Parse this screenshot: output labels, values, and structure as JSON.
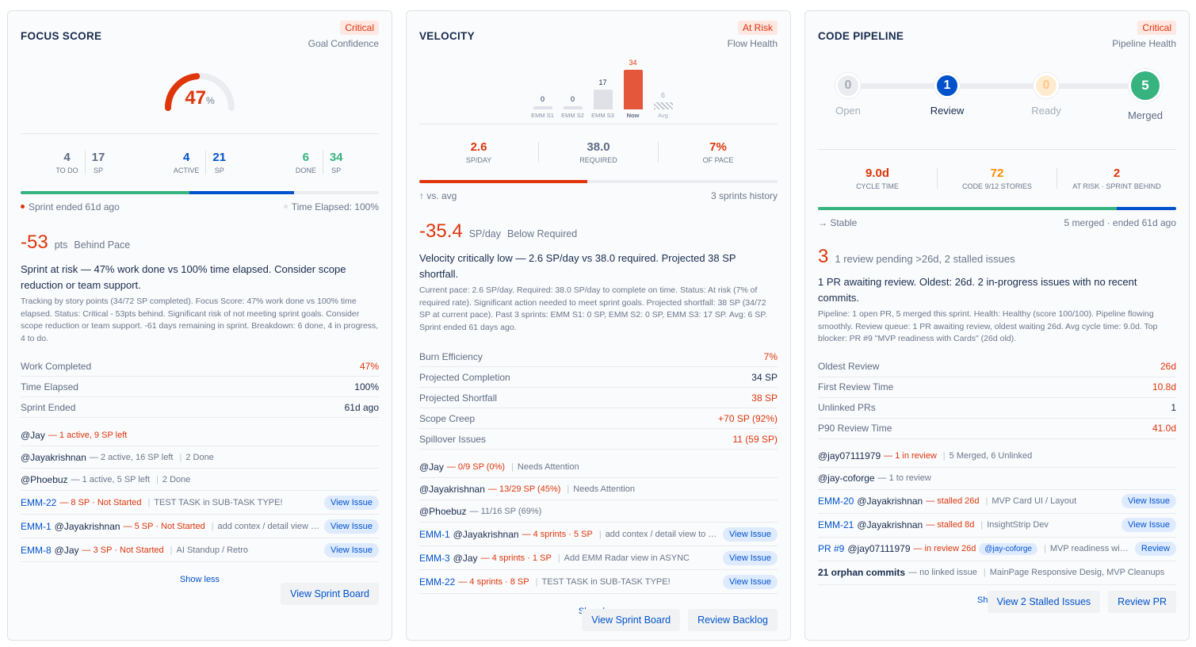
{
  "focus": {
    "title": "FOCUS SCORE",
    "badge": "Critical",
    "subtitle": "Goal Confidence",
    "gauge_percent": 47,
    "gauge_value": "47",
    "gauge_unit": "%",
    "stats": [
      {
        "v": "4",
        "l": "TO DO",
        "sp": "17",
        "spl": "SP",
        "color": "#5e6c84"
      },
      {
        "v": "4",
        "l": "ACTIVE",
        "sp": "21",
        "spl": "SP",
        "color": "#0052cc"
      },
      {
        "v": "6",
        "l": "DONE",
        "sp": "34",
        "spl": "SP",
        "color": "#36b37e"
      }
    ],
    "progress": {
      "done_sp": 34,
      "active_sp": 21,
      "total_sp": 72
    },
    "footer_left": "Sprint ended 61d ago",
    "footer_right": "Time Elapsed: 100%",
    "big_value": "-53",
    "big_unit": "pts",
    "big_label": "Behind Pace",
    "headline": "Sprint at risk — 47% work done vs 100% time elapsed. Consider scope reduction or team support.",
    "description": "Tracking by story points (34/72 SP completed). Focus Score: 47% work done vs 100% time elapsed. Status: Critical - 53pts behind. Significant risk of not meeting sprint goals. Consider scope reduction or team support. -61 days remaining in sprint. Breakdown: 6 done, 4 in progress, 4 to do.",
    "metrics": [
      {
        "label": "Work Completed",
        "value": "47%",
        "color": "red"
      },
      {
        "label": "Time Elapsed",
        "value": "100%",
        "color": "dark"
      },
      {
        "label": "Sprint Ended",
        "value": "61d ago",
        "color": "dark"
      }
    ],
    "people": [
      {
        "name": "@Jay",
        "info": "— 1 active, 9 SP left",
        "alert": true,
        "extra": ""
      },
      {
        "name": "@Jayakrishnan",
        "info": "— 2 active, 16 SP left",
        "alert": false,
        "extra": "2 Done"
      },
      {
        "name": "@Phoebuz",
        "info": "— 1 active, 5 SP left",
        "alert": false,
        "extra": "2 Done"
      }
    ],
    "issues": [
      {
        "key": "EMM-22",
        "user": "",
        "info": "— 8 SP · Not Started",
        "text": "TEST TASK in SUB-TASK TYPE!",
        "button": "View Issue"
      },
      {
        "key": "EMM-1",
        "user": "@Jayakrishnan",
        "info": "— 5 SP · Not Started",
        "text": "add contex / detail view to the ...",
        "button": "View Issue"
      },
      {
        "key": "EMM-8",
        "user": "@Jay",
        "info": "— 3 SP · Not Started",
        "text": "AI Standup / Retro",
        "button": "View Issue"
      }
    ],
    "show_less": "Show less",
    "buttons": [
      "View Sprint Board"
    ]
  },
  "velocity": {
    "title": "VELOCITY",
    "badge": "At Risk",
    "subtitle": "Flow Health",
    "chart_data": {
      "type": "bar",
      "categories": [
        "EMM S1",
        "EMM S2",
        "EMM S3",
        "Now",
        "Avg"
      ],
      "values": [
        0,
        0,
        17,
        34,
        6
      ],
      "colors": [
        "#dfe1e6",
        "#dfe1e6",
        "#dfe1e6",
        "#e5573b",
        "hatched"
      ]
    },
    "stats": [
      {
        "v": "2.6",
        "l": "SP/DAY",
        "color": "#de350b"
      },
      {
        "v": "38.0",
        "l": "REQUIRED",
        "color": "#5e6c84"
      },
      {
        "v": "7%",
        "l": "OF PACE",
        "color": "#de350b"
      }
    ],
    "progress_percent": 47,
    "footer_left": "↑ vs. avg",
    "footer_right": "3 sprints history",
    "big_value": "-35.4",
    "big_unit": "SP/day",
    "big_label": "Below Required",
    "headline": "Velocity critically low — 2.6 SP/day vs 38.0 required. Projected 38 SP shortfall.",
    "description": "Current pace: 2.6 SP/day. Required: 38.0 SP/day to complete on time. Status: At risk (7% of required rate). Significant action needed to meet sprint goals. Projected shortfall: 38 SP (34/72 SP at current pace). Past 3 sprints: EMM S1: 0 SP, EMM S2: 0 SP, EMM S3: 17 SP. Avg: 6 SP. Sprint ended 61 days ago.",
    "metrics": [
      {
        "label": "Burn Efficiency",
        "value": "7%",
        "color": "red"
      },
      {
        "label": "Projected Completion",
        "value": "34 SP",
        "color": "dark"
      },
      {
        "label": "Projected Shortfall",
        "value": "38 SP",
        "color": "red"
      },
      {
        "label": "Scope Creep",
        "value": "+70 SP (92%)",
        "color": "red"
      },
      {
        "label": "Spillover Issues",
        "value": "11 (59 SP)",
        "color": "red"
      }
    ],
    "people": [
      {
        "name": "@Jay",
        "info": "— 0/9 SP (0%)",
        "alert": true,
        "extra": "Needs Attention"
      },
      {
        "name": "@Jayakrishnan",
        "info": "— 13/29 SP (45%)",
        "alert": true,
        "extra": "Needs Attention"
      },
      {
        "name": "@Phoebuz",
        "info": "— 11/16 SP (69%)",
        "alert": false,
        "extra": ""
      }
    ],
    "issues": [
      {
        "key": "EMM-1",
        "user": "@Jayakrishnan",
        "info": "— 4 sprints · 5 SP",
        "text": "add contex / detail view to the ...",
        "button": "View Issue"
      },
      {
        "key": "EMM-3",
        "user": "@Jay",
        "info": "— 4 sprints · 1 SP",
        "text": "Add EMM Radar view in ASYNC",
        "button": "View Issue"
      },
      {
        "key": "EMM-22",
        "user": "",
        "info": "— 4 sprints · 8 SP",
        "text": "TEST TASK in SUB-TASK TYPE!",
        "button": "View Issue"
      }
    ],
    "show_less": "Show less",
    "buttons": [
      "View Sprint Board",
      "Review Backlog"
    ]
  },
  "pipeline": {
    "title": "CODE PIPELINE",
    "badge": "Critical",
    "subtitle": "Pipeline Health",
    "steps": [
      {
        "count": "0",
        "label": "Open",
        "state": "empty"
      },
      {
        "count": "1",
        "label": "Review",
        "state": "active"
      },
      {
        "count": "0",
        "label": "Ready",
        "state": "warn"
      },
      {
        "count": "5",
        "label": "Merged",
        "state": "done"
      }
    ],
    "stats": [
      {
        "v": "9.0d",
        "l": "CYCLE TIME",
        "color": "#de350b"
      },
      {
        "v": "72",
        "l": "CODE 9/12 STORIES",
        "color": "#ff8b00"
      },
      {
        "v": "2",
        "l": "AT RISK · SPRINT BEHIND",
        "color": "#de350b"
      }
    ],
    "progress": {
      "merged": 5,
      "review": 1
    },
    "footer_left": "→ Stable",
    "footer_right": "5 merged · ended 61d ago",
    "big_value": "3",
    "big_label": "1 review pending >26d, 2 stalled issues",
    "headline": "1 PR awaiting review. Oldest: 26d. 2 in-progress issues with no recent commits.",
    "description": "Pipeline: 1 open PR, 5 merged this sprint. Health: Healthy (score 100/100). Pipeline flowing smoothly. Review queue: 1 PR awaiting review, oldest waiting 26d. Avg cycle time: 9.0d. Top blocker: PR #9 \"MVP readiness with Cards\" (26d old).",
    "metrics": [
      {
        "label": "Oldest Review",
        "value": "26d",
        "color": "red"
      },
      {
        "label": "First Review Time",
        "value": "10.8d",
        "color": "red"
      },
      {
        "label": "Unlinked PRs",
        "value": "1",
        "color": "dark"
      },
      {
        "label": "P90 Review Time",
        "value": "41.0d",
        "color": "red"
      }
    ],
    "people": [
      {
        "name": "@jay07111979",
        "info": "— 1 in review",
        "alert": true,
        "extra": "5 Merged, 6 Unlinked"
      },
      {
        "name": "@jay-coforge",
        "info": "— 1 to review",
        "alert": false,
        "extra": ""
      }
    ],
    "issues": [
      {
        "key": "EMM-20",
        "user": "@Jayakrishnan",
        "info": "— stalled 26d",
        "text": "MVP Card UI / Layout",
        "button": "View Issue",
        "alert": true
      },
      {
        "key": "EMM-21",
        "user": "@Jayakrishnan",
        "info": "— stalled 8d",
        "text": "InsightStrip Dev",
        "button": "View Issue",
        "alert": true
      },
      {
        "key": "PR #9",
        "user": "@jay07111979",
        "info": "— in review 26d",
        "chip": "@jay-coforge",
        "text": "MVP readiness with C...",
        "button": "Review",
        "alert": true
      },
      {
        "key": "21 orphan commits",
        "user": "",
        "info": "— no linked issue",
        "text": "MainPage Responsive Desig, MVP Cleanups",
        "button": "",
        "alert": false,
        "plain": true
      }
    ],
    "show_less": "Show less",
    "buttons": [
      "View 2 Stalled Issues",
      "Review PR"
    ]
  }
}
